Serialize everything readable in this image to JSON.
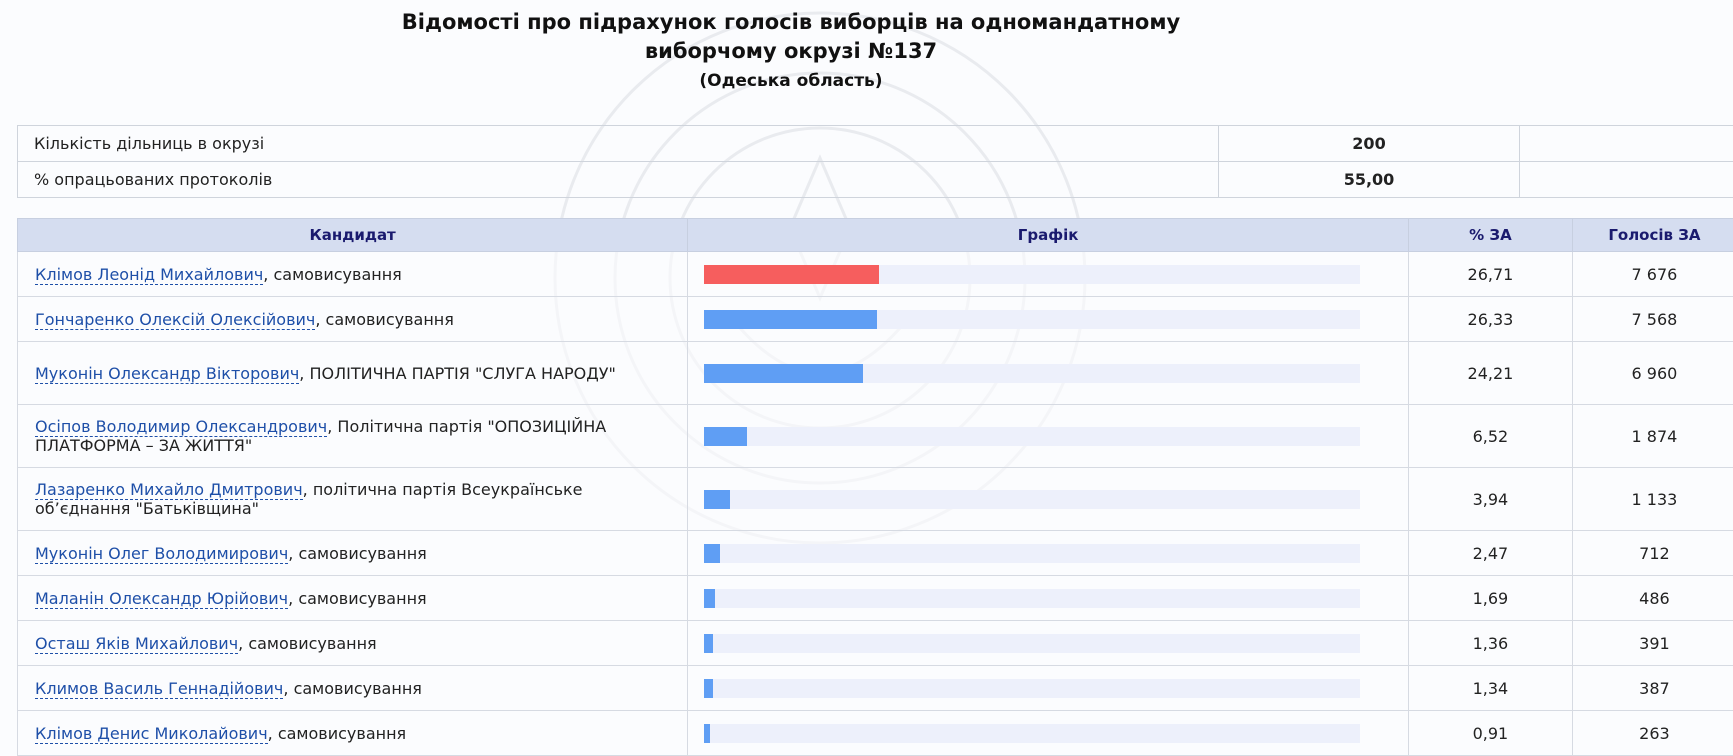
{
  "header": {
    "title_line1": "Відомості про підрахунок голосів виборців на одномандатному",
    "title_line2": "виборчому окрузі №137",
    "region": "(Одеська область)"
  },
  "summary": [
    {
      "label": "Кількість дільниць в окрузі",
      "value": "200"
    },
    {
      "label": "% опрацьованих протоколів",
      "value": "55,00"
    }
  ],
  "table": {
    "headers": {
      "candidate": "Кандидат",
      "graph": "Графік",
      "percent": "% ЗА",
      "votes": "Голосів ЗА"
    },
    "rows": [
      {
        "name": "Клімов Леонід Михайлович",
        "party": ", самовисування",
        "percent": "26,71",
        "votes": "7 676",
        "bar_fraction": 0.2671,
        "bar_color": "#f65e5e"
      },
      {
        "name": "Гончаренко Олексій Олексійович",
        "party": ", самовисування",
        "percent": "26,33",
        "votes": "7 568",
        "bar_fraction": 0.2633,
        "bar_color": "#5f9ef4"
      },
      {
        "name": "Муконін Олександр Вікторович",
        "party": ", ПОЛІТИЧНА ПАРТІЯ \"СЛУГА НАРОДУ\"",
        "percent": "24,21",
        "votes": "6 960",
        "bar_fraction": 0.2421,
        "bar_color": "#5f9ef4"
      },
      {
        "name": "Осіпов Володимир Олександрович",
        "party": ", Політична партія \"ОПОЗИЦІЙНА ПЛАТФОРМА – ЗА ЖИТТЯ\"",
        "percent": "6,52",
        "votes": "1 874",
        "bar_fraction": 0.0652,
        "bar_color": "#5f9ef4"
      },
      {
        "name": "Лазаренко Михайло Дмитрович",
        "party": ", політична партія Всеукраїнське об’єднання \"Батьківщина\"",
        "percent": "3,94",
        "votes": "1 133",
        "bar_fraction": 0.0394,
        "bar_color": "#5f9ef4"
      },
      {
        "name": "Муконін Олег Володимирович",
        "party": ", самовисування",
        "percent": "2,47",
        "votes": "712",
        "bar_fraction": 0.0247,
        "bar_color": "#5f9ef4"
      },
      {
        "name": "Маланін Олександр Юрійович",
        "party": ", самовисування",
        "percent": "1,69",
        "votes": "486",
        "bar_fraction": 0.0169,
        "bar_color": "#5f9ef4"
      },
      {
        "name": "Осташ Яків Михайлович",
        "party": ", самовисування",
        "percent": "1,36",
        "votes": "391",
        "bar_fraction": 0.0136,
        "bar_color": "#5f9ef4"
      },
      {
        "name": "Климов Василь Геннадійович",
        "party": ", самовисування",
        "percent": "1,34",
        "votes": "387",
        "bar_fraction": 0.0134,
        "bar_color": "#5f9ef4"
      },
      {
        "name": "Клімов Денис Миколайович",
        "party": ", самовисування",
        "percent": "0,91",
        "votes": "263",
        "bar_fraction": 0.0091,
        "bar_color": "#5f9ef4"
      }
    ]
  },
  "colors": {
    "leader_bar": "#f65e5e",
    "bar": "#5f9ef4",
    "bar_track": "#edf0fb",
    "header_bg": "#d5ddf0",
    "link": "#1e4fa8"
  }
}
